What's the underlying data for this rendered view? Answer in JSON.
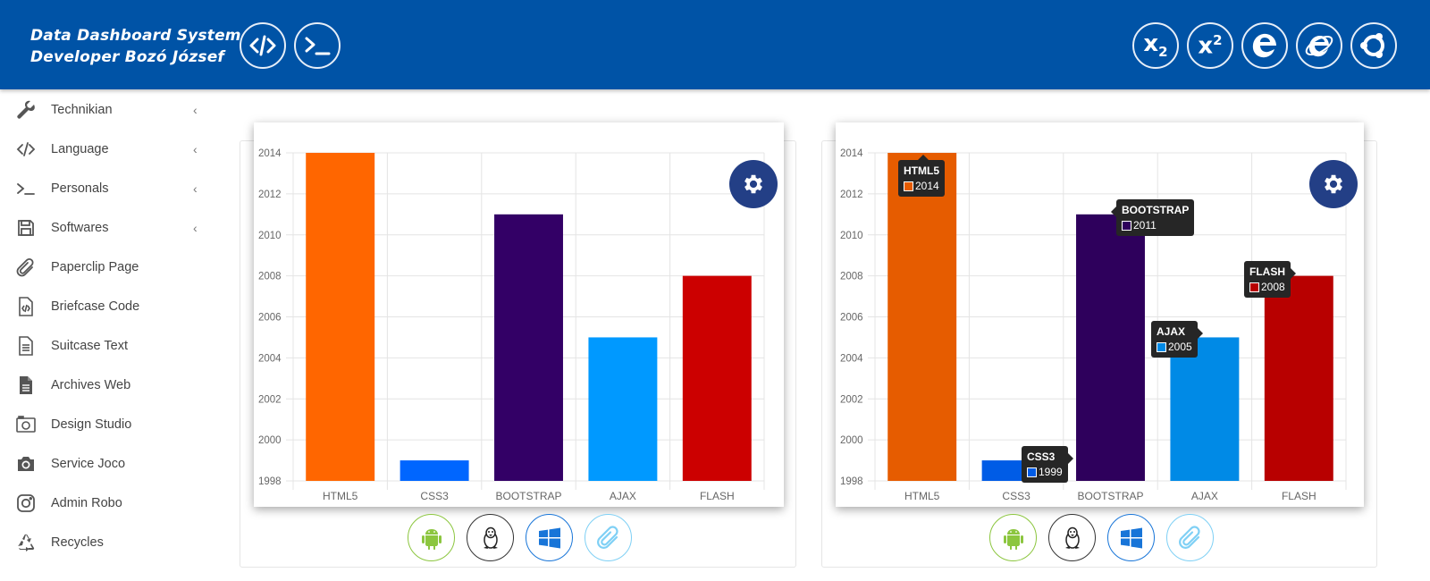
{
  "header": {
    "brand_line1": "Data Dashboard System",
    "brand_line2": "Developer Bozó József",
    "left_icons": [
      "code-icon",
      "terminal-icon"
    ],
    "right_icons": [
      "subscript-icon",
      "superscript-icon",
      "edge-icon",
      "internet-explorer-icon",
      "ubuntu-icon"
    ],
    "subscript_label": "x",
    "subscript_mark": "2",
    "superscript_label": "x",
    "superscript_mark": "2"
  },
  "sidebar": {
    "items": [
      {
        "label": "Technikian",
        "icon": "wrench-icon",
        "chevron": "‹"
      },
      {
        "label": "Language",
        "icon": "code-icon",
        "chevron": "‹"
      },
      {
        "label": "Personals",
        "icon": "terminal-icon",
        "chevron": "‹"
      },
      {
        "label": "Softwares",
        "icon": "floppy-disk-icon",
        "chevron": "‹"
      },
      {
        "label": "Paperclip Page",
        "icon": "paperclip-icon",
        "chevron": ""
      },
      {
        "label": "Briefcase Code",
        "icon": "file-code-icon",
        "chevron": ""
      },
      {
        "label": "Suitcase Text",
        "icon": "file-text-icon",
        "chevron": ""
      },
      {
        "label": "Archives Web",
        "icon": "file-icon",
        "chevron": ""
      },
      {
        "label": "Design Studio",
        "icon": "photo-icon",
        "chevron": ""
      },
      {
        "label": "Service Joco",
        "icon": "camera-icon",
        "chevron": ""
      },
      {
        "label": "Admin Robo",
        "icon": "instagram-icon",
        "chevron": ""
      },
      {
        "label": "Recycles",
        "icon": "recycle-icon",
        "chevron": ""
      }
    ]
  },
  "colors": {
    "header_bg": "#0053a6",
    "gear_bg": "#233f86"
  },
  "os_icons": [
    "android-icon",
    "linux-icon",
    "windows-icon",
    "paperclip-icon"
  ],
  "chart_data": [
    {
      "type": "bar",
      "categories": [
        "HTML5",
        "CSS3",
        "BOOTSTRAP",
        "AJAX",
        "FLASH"
      ],
      "values": [
        2014,
        1999,
        2011,
        2005,
        2008
      ],
      "colors": [
        "#ff6600",
        "#0066ff",
        "#330066",
        "#0099ff",
        "#cc0000"
      ],
      "ylim": [
        1998,
        2014
      ],
      "yticks": [
        "2014",
        "2012",
        "2010",
        "2008",
        "2006",
        "2004",
        "2002",
        "2000",
        "1998"
      ],
      "grid": true
    },
    {
      "type": "bar",
      "categories": [
        "HTML5",
        "CSS3",
        "BOOTSTRAP",
        "AJAX",
        "FLASH"
      ],
      "values": [
        2014,
        1999,
        2011,
        2005,
        2008
      ],
      "colors": [
        "#e65c00",
        "#005ce6",
        "#2e005c",
        "#008ae6",
        "#b80000"
      ],
      "ylim": [
        1998,
        2014
      ],
      "yticks": [
        "2014",
        "2012",
        "2010",
        "2008",
        "2006",
        "2004",
        "2002",
        "2000",
        "1998"
      ],
      "grid": true,
      "tooltips": [
        {
          "title": "HTML5",
          "value": "2014",
          "swatch": "#e65c00"
        },
        {
          "title": "CSS3",
          "value": "1999",
          "swatch": "#005ce6"
        },
        {
          "title": "BOOTSTRAP",
          "value": "2011",
          "swatch": "#2e005c"
        },
        {
          "title": "AJAX",
          "value": "2005",
          "swatch": "#008ae6"
        },
        {
          "title": "FLASH",
          "value": "2008",
          "swatch": "#b80000"
        }
      ]
    }
  ]
}
